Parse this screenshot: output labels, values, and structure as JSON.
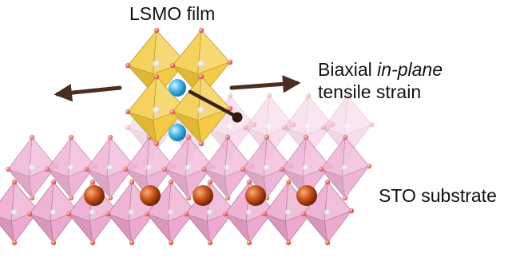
{
  "labels": {
    "film": "LSMO film",
    "strain_line1_prefix": "Biaxial ",
    "strain_line1_italic": "in-plane",
    "strain_line2": "tensile strain",
    "substrate": "STO substrate"
  },
  "colors": {
    "film_octahedra": "#f2c83a",
    "substrate_octahedra": "#eca4cc",
    "oxygen": "#e5554a",
    "a_site_film": "#42b4e6",
    "a_site_substrate": "#c8501a",
    "arrow": "#5a3a28"
  }
}
